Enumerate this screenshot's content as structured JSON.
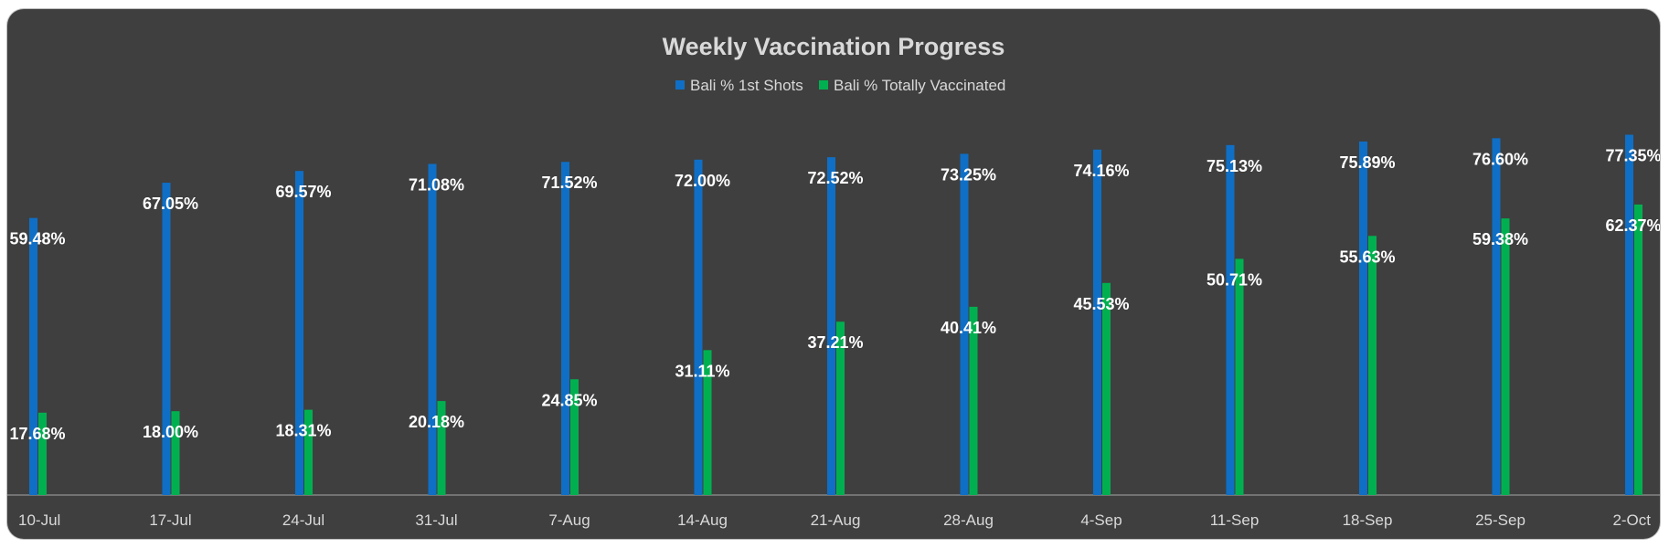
{
  "chart_data": {
    "type": "bar",
    "title": "Weekly Vaccination Progress",
    "xlabel": "",
    "ylabel": "",
    "categories": [
      "10-Jul",
      "17-Jul",
      "24-Jul",
      "31-Jul",
      "7-Aug",
      "14-Aug",
      "21-Aug",
      "28-Aug",
      "4-Sep",
      "11-Sep",
      "18-Sep",
      "25-Sep",
      "2-Oct"
    ],
    "series": [
      {
        "name": "Bali % 1st Shots",
        "color": "#0f6fc6",
        "values": [
          59.48,
          67.05,
          69.57,
          71.08,
          71.52,
          72.0,
          72.52,
          73.25,
          74.16,
          75.13,
          75.89,
          76.6,
          77.35
        ],
        "labels": [
          "59.48%",
          "67.05%",
          "69.57%",
          "71.08%",
          "71.52%",
          "72.00%",
          "72.52%",
          "73.25%",
          "74.16%",
          "75.13%",
          "75.89%",
          "76.60%",
          "77.35%"
        ]
      },
      {
        "name": "Bali % Totally Vaccinated",
        "color": "#00b050",
        "values": [
          17.68,
          18.0,
          18.31,
          20.18,
          24.85,
          31.11,
          37.21,
          40.41,
          45.53,
          50.71,
          55.63,
          59.38,
          62.37
        ],
        "labels": [
          "17.68%",
          "18.00%",
          "18.31%",
          "20.18%",
          "24.85%",
          "31.11%",
          "37.21%",
          "40.41%",
          "45.53%",
          "50.71%",
          "55.63%",
          "59.38%",
          "62.37%"
        ]
      }
    ],
    "ylim": [
      0,
      100
    ],
    "grid": false,
    "legend_position": "top",
    "axis_color": "#a6a6a6",
    "background_color": "#3f3f3f"
  }
}
